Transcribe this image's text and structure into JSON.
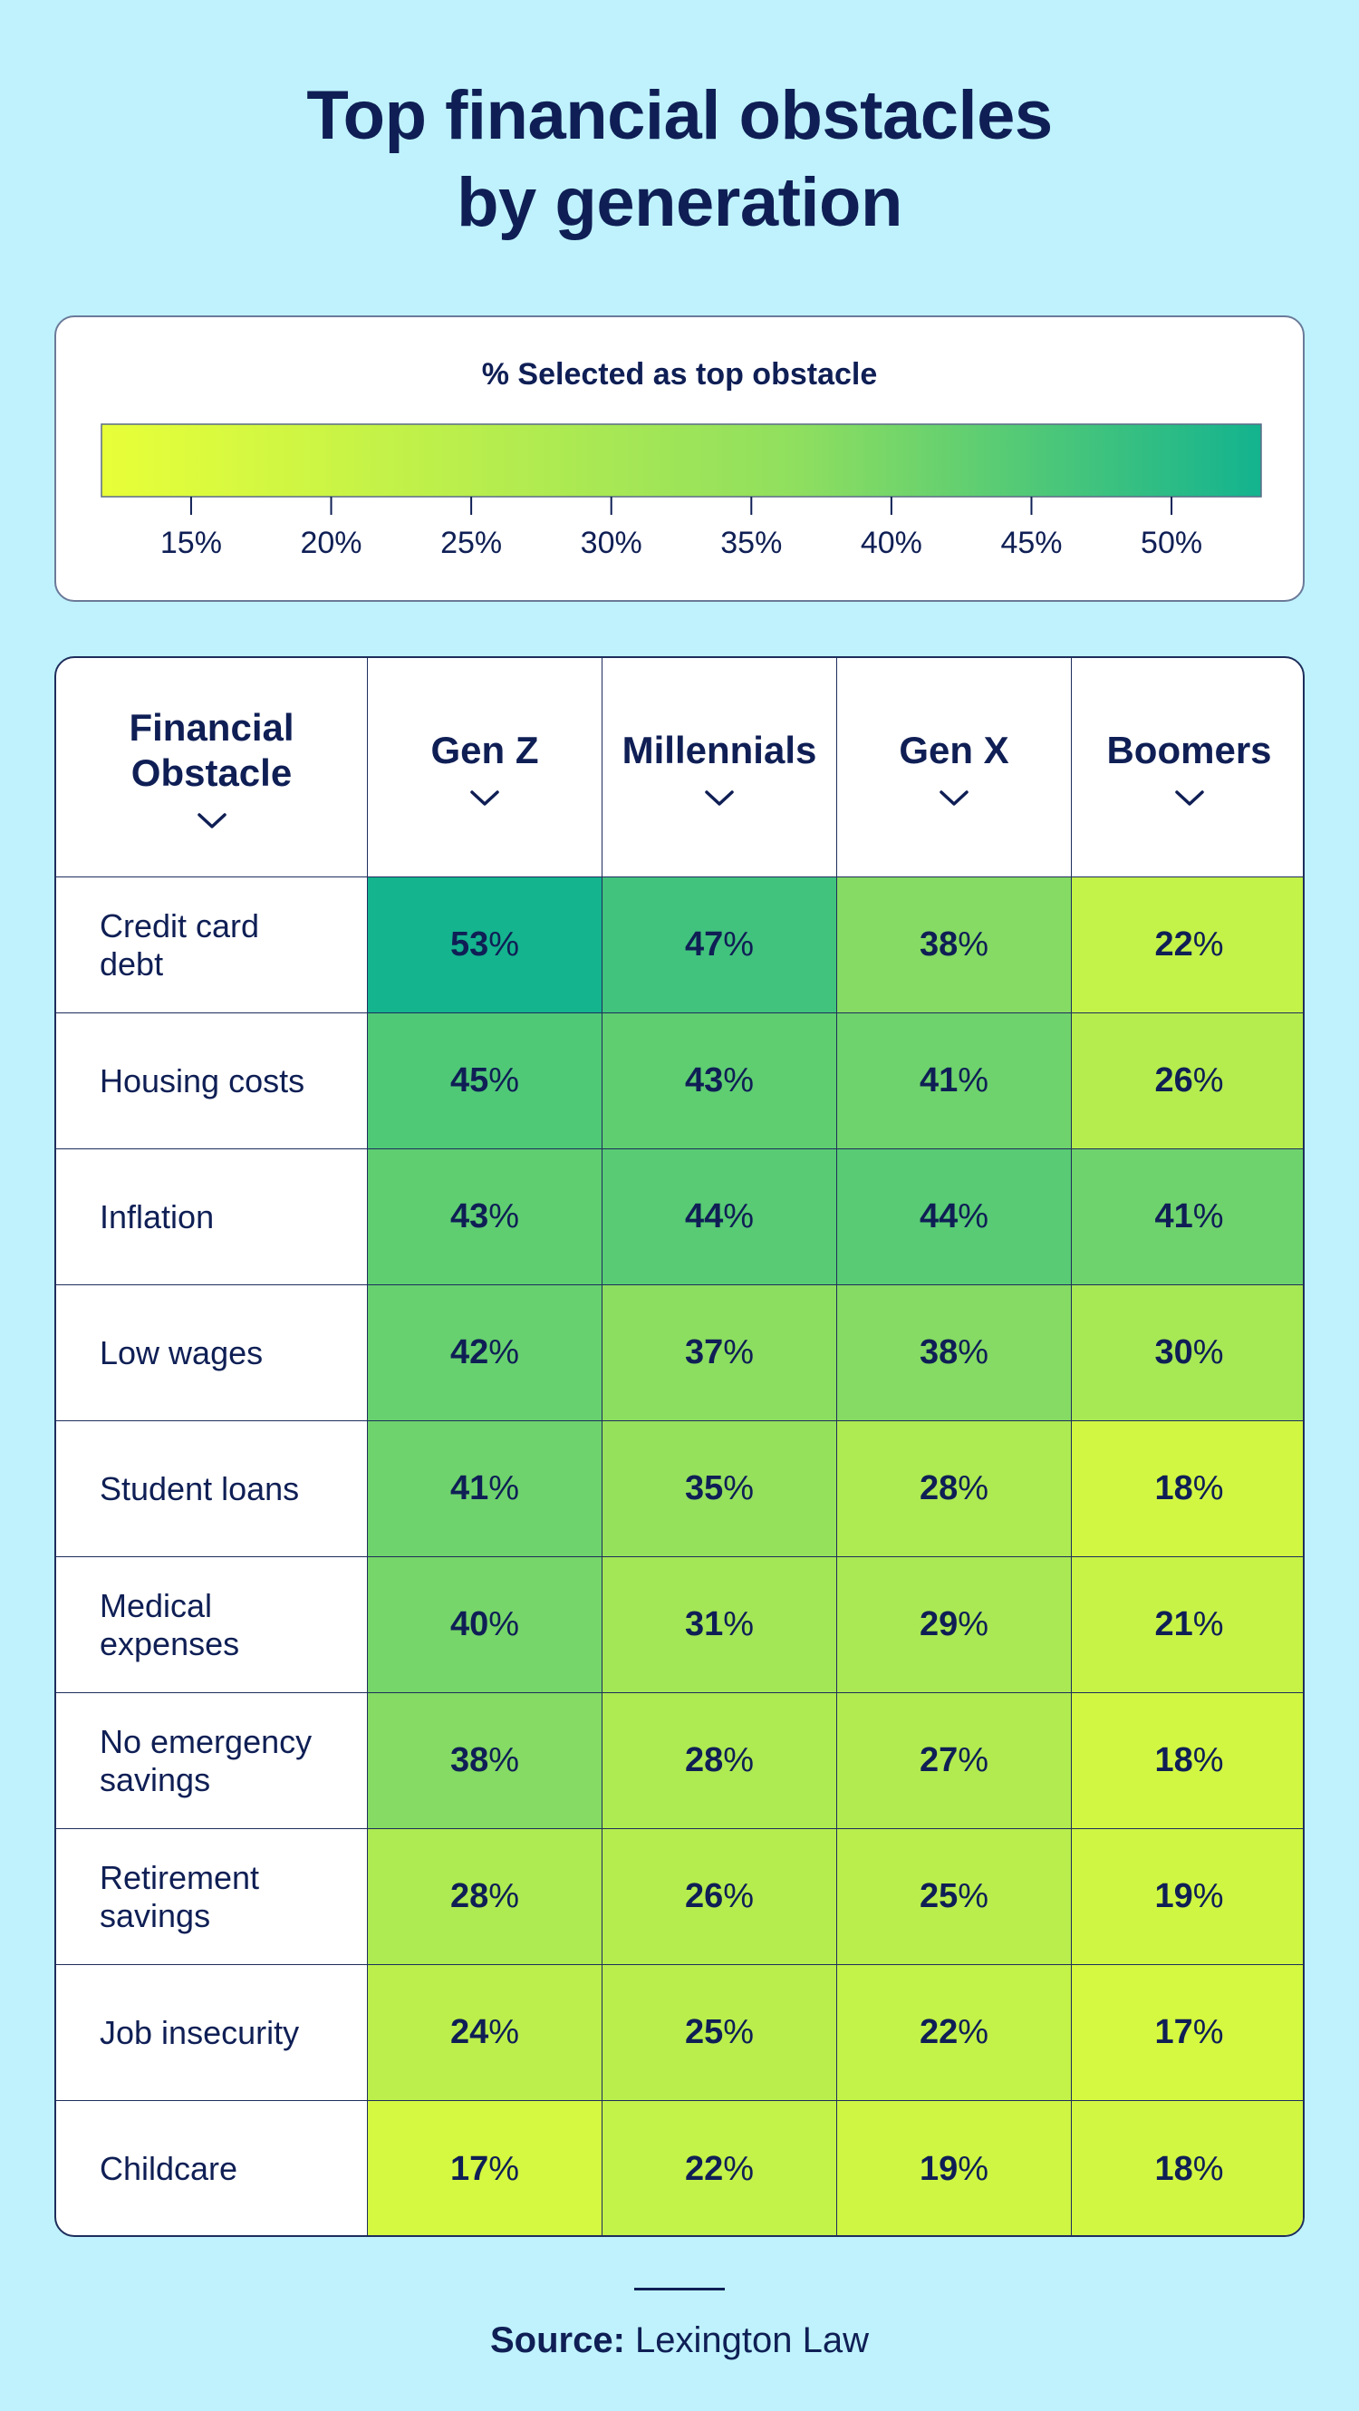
{
  "title_lines": [
    "Top financial obstacles",
    "by generation"
  ],
  "legend": {
    "title": "% Selected as top obstacle",
    "ticks": [
      "15%",
      "20%",
      "25%",
      "30%",
      "35%",
      "40%",
      "45%",
      "50%"
    ],
    "tick_values": [
      15,
      20,
      25,
      30,
      35,
      40,
      45,
      50
    ],
    "range": [
      11.8,
      53.2
    ],
    "color_low": "#e8ff38",
    "color_mid": "#8fdf5f",
    "color_high": "#13b38f"
  },
  "table": {
    "header_lines": {
      "obstacle": [
        "Financial",
        "Obstacle"
      ],
      "genz": [
        "Gen Z"
      ],
      "millennials": [
        "Millennials"
      ],
      "genx": [
        "Gen X"
      ],
      "boomers": [
        "Boomers"
      ]
    }
  },
  "chart_data": {
    "type": "heatmap",
    "title": "Top financial obstacles by generation",
    "colorbar_label": "% Selected as top obstacle",
    "columns": [
      "Gen Z",
      "Millennials",
      "Gen X",
      "Boomers"
    ],
    "rows": [
      {
        "obstacle_lines": [
          "Credit card",
          "debt"
        ],
        "values": [
          53,
          47,
          38,
          22
        ]
      },
      {
        "obstacle_lines": [
          "Housing costs"
        ],
        "values": [
          45,
          43,
          41,
          26
        ]
      },
      {
        "obstacle_lines": [
          "Inflation"
        ],
        "values": [
          43,
          44,
          44,
          41
        ]
      },
      {
        "obstacle_lines": [
          "Low wages"
        ],
        "values": [
          42,
          37,
          38,
          30
        ]
      },
      {
        "obstacle_lines": [
          "Student loans"
        ],
        "values": [
          41,
          35,
          28,
          18
        ]
      },
      {
        "obstacle_lines": [
          "Medical",
          "expenses"
        ],
        "values": [
          40,
          31,
          29,
          21
        ]
      },
      {
        "obstacle_lines": [
          "No emergency",
          "savings"
        ],
        "values": [
          38,
          28,
          27,
          18
        ]
      },
      {
        "obstacle_lines": [
          "Retirement",
          "savings"
        ],
        "values": [
          28,
          26,
          25,
          19
        ]
      },
      {
        "obstacle_lines": [
          "Job insecurity"
        ],
        "values": [
          24,
          25,
          22,
          17
        ]
      },
      {
        "obstacle_lines": [
          "Childcare"
        ],
        "values": [
          17,
          22,
          19,
          18
        ]
      }
    ],
    "value_suffix": "%"
  },
  "source": {
    "label": "Source:",
    "text": "Lexington Law"
  }
}
